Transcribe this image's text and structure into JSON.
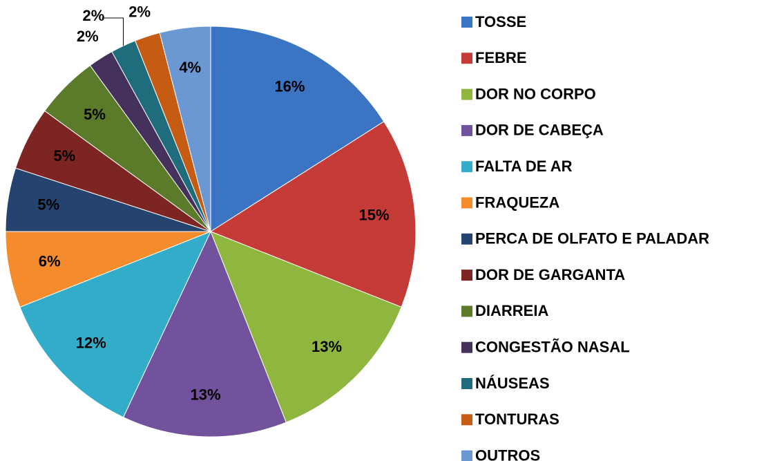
{
  "chart_data": {
    "type": "pie",
    "categories": [
      "TOSSE",
      "FEBRE",
      "DOR NO CORPO",
      "DOR DE  CABEÇA",
      "FALTA DE AR",
      "FRAQUEZA",
      "PERCA DE OLFATO E PALADAR",
      "DOR DE GARGANTA",
      "DIARREIA",
      "CONGESTÃO NASAL",
      "NÁUSEAS",
      "TONTURAS",
      "OUTROS"
    ],
    "values": [
      16,
      15,
      13,
      13,
      12,
      6,
      5,
      5,
      5,
      2,
      2,
      2,
      4
    ],
    "value_labels": [
      "16%",
      "15%",
      "13%",
      "13%",
      "12%",
      "6%",
      "5%",
      "5%",
      "5%",
      "2%",
      "2%",
      "2%",
      "4%"
    ],
    "colors": [
      "#3b74c2",
      "#c43b38",
      "#8fb63f",
      "#72529c",
      "#33acc9",
      "#f48c2d",
      "#25436f",
      "#7c2522",
      "#5b7b2b",
      "#45325c",
      "#1f6c7d",
      "#c65b14",
      "#6b98d2"
    ],
    "legend": "right"
  }
}
